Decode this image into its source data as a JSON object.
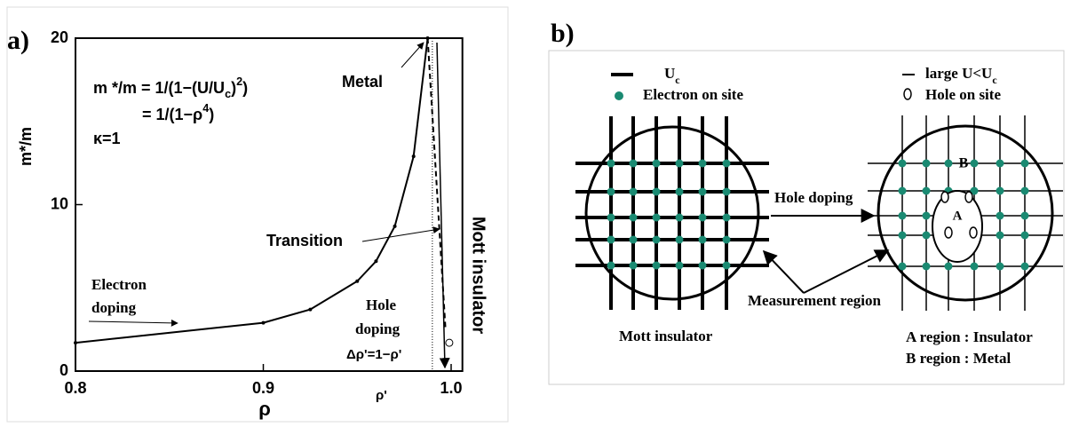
{
  "chart_data": {
    "type": "line",
    "panel_label": "a)",
    "x_label": "ρ",
    "y_label": "m*/m",
    "xlim": [
      0.8,
      1.006
    ],
    "ylim": [
      0,
      20
    ],
    "xticks": [
      0.8,
      0.9,
      {
        "value": 1,
        "label": "1.0"
      }
    ],
    "yticks": [
      0,
      10,
      20
    ],
    "series": [
      {
        "color": "#000000",
        "x": [
          0.8,
          0.9,
          0.925,
          0.95,
          0.96,
          0.97,
          0.98,
          0.9875
        ],
        "values": [
          1.7,
          2.9,
          3.7,
          5.4,
          6.6,
          8.7,
          12.9,
          20
        ]
      },
      {
        "color": "#000000",
        "dashed": true,
        "x": [
          0.9875,
          0.997
        ],
        "values": [
          20,
          2.5
        ]
      }
    ],
    "point": {
      "x": 0.999,
      "value": 1.7
    },
    "rho_prime": 0.99,
    "formula": [
      [
        "m */m = 1/(1−(U/U",
        "c",
        ")",
        "2",
        ")"
      ],
      [
        "= 1/(1−ρ",
        "4",
        ")"
      ],
      [
        "κ=1"
      ]
    ],
    "annotations": [
      "Metal",
      "Transition",
      "Electron",
      "doping",
      "Hole",
      "doping",
      "Δρ'=1−ρ'",
      "ρ'",
      "Mott insulator"
    ]
  },
  "panel_b": {
    "label": "b)",
    "legend": [
      [
        "U",
        "c"
      ],
      [
        "Electron on site"
      ],
      [
        "large U<U",
        "c"
      ],
      [
        "Hole on site"
      ]
    ],
    "arrow_label": "Hole doping",
    "measurement": "Measurement region",
    "left_caption": "Mott insulator",
    "right_caption": [
      "A region : Insulator",
      "B region : Metal"
    ],
    "region_a": "A",
    "region_b": "B"
  }
}
